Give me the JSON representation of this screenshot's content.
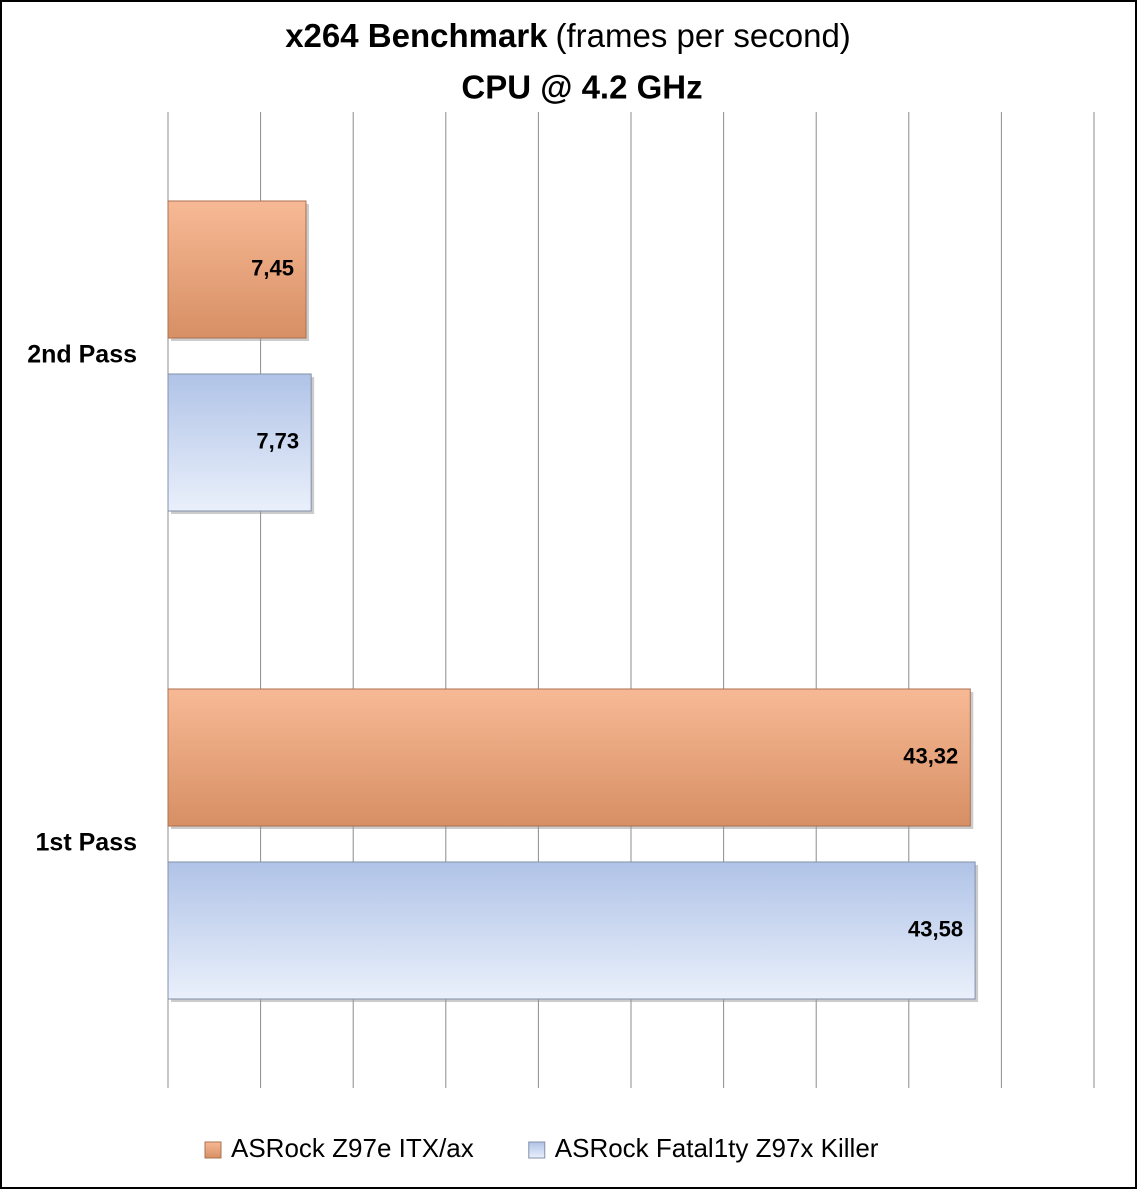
{
  "chart_data": {
    "type": "hbar",
    "title": "x264 Benchmark",
    "title_note": "(frames per second)",
    "subtitle": "CPU @ 4.2 GHz",
    "categories": [
      "2nd Pass",
      "1st Pass"
    ],
    "series": [
      {
        "name": "ASRock Z97e ITX/ax",
        "color": "#f4a272",
        "values": [
          7.45,
          43.32
        ],
        "value_labels": [
          "7,45",
          "43,32"
        ]
      },
      {
        "name": "ASRock Fatal1ty Z97x Killer",
        "color": "#b9cdf3",
        "values": [
          7.73,
          43.58
        ],
        "value_labels": [
          "7,73",
          "43,58"
        ]
      }
    ],
    "xlim": [
      0,
      50
    ],
    "xticks": [
      0,
      5,
      10,
      15,
      20,
      25,
      30,
      35,
      40,
      45,
      50
    ],
    "grid": true,
    "legend": "bottom"
  }
}
